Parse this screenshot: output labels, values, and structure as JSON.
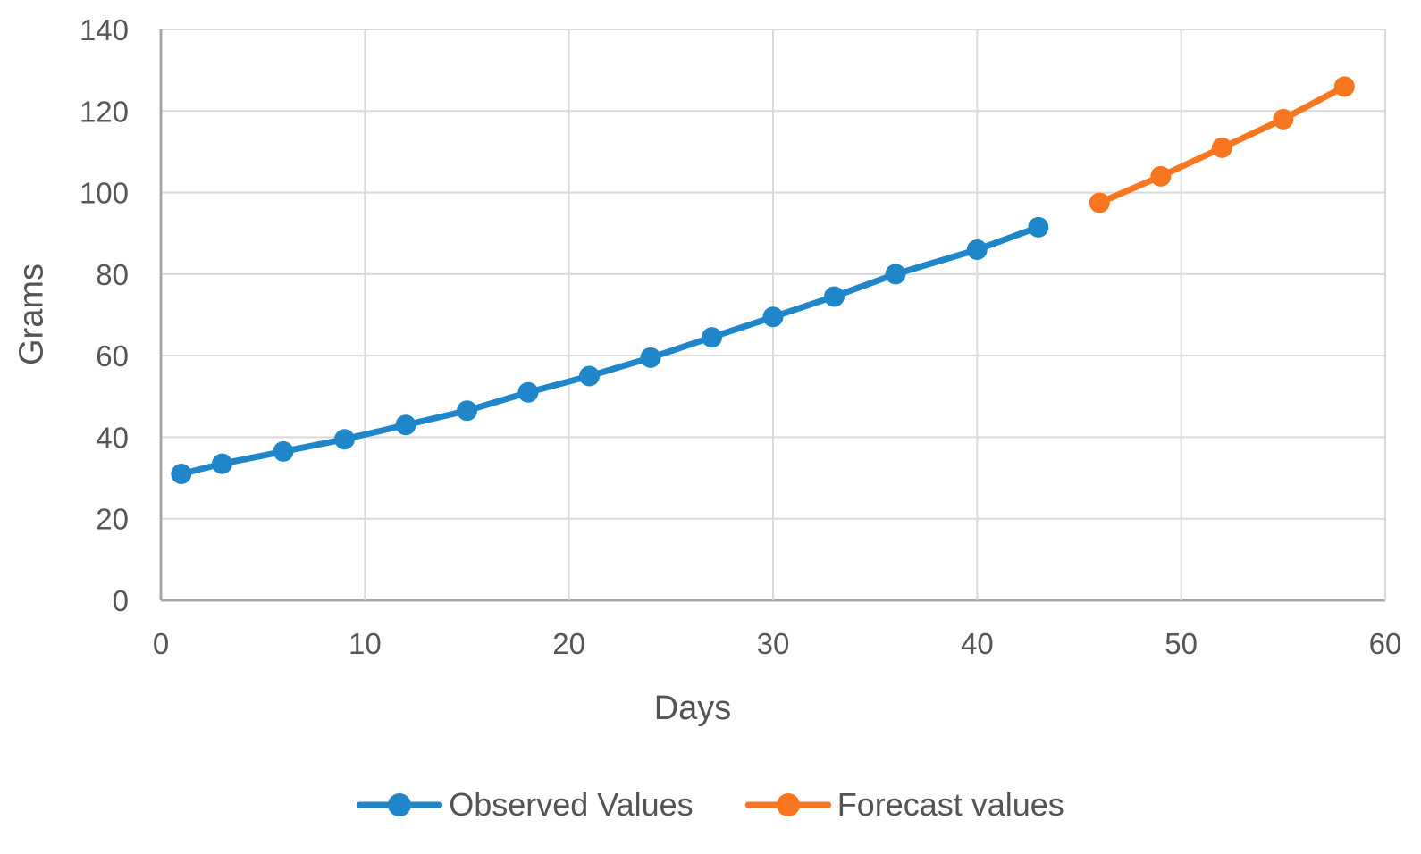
{
  "chart_data": {
    "type": "line",
    "title": "",
    "xlabel": "Days",
    "ylabel": "Grams",
    "xlim": [
      0,
      60
    ],
    "ylim": [
      0,
      140
    ],
    "xticks": [
      0,
      10,
      20,
      30,
      40,
      50,
      60
    ],
    "yticks": [
      0,
      20,
      40,
      60,
      80,
      100,
      120,
      140
    ],
    "grid": true,
    "legend_position": "bottom-center",
    "colors": {
      "grid": "#d9d9d9",
      "axis": "#a8a8a8",
      "tick_text": "#565656",
      "observed": "#1f87c9",
      "forecast": "#f8761f"
    },
    "series": [
      {
        "id": "observed",
        "name": "Observed Values",
        "color": "#1f87c9",
        "marker": "circle",
        "x": [
          1,
          3,
          6,
          9,
          12,
          15,
          18,
          21,
          24,
          27,
          30,
          33,
          36,
          40,
          43
        ],
        "y": [
          31,
          33.5,
          36.5,
          39.5,
          43,
          46.5,
          51,
          55,
          59.5,
          64.5,
          69.5,
          74.5,
          80,
          86,
          91.5
        ]
      },
      {
        "id": "forecast",
        "name": "Forecast values",
        "color": "#f8761f",
        "marker": "circle",
        "x": [
          46,
          49,
          52,
          55,
          58
        ],
        "y": [
          97.5,
          104,
          111,
          118,
          126
        ]
      }
    ]
  }
}
